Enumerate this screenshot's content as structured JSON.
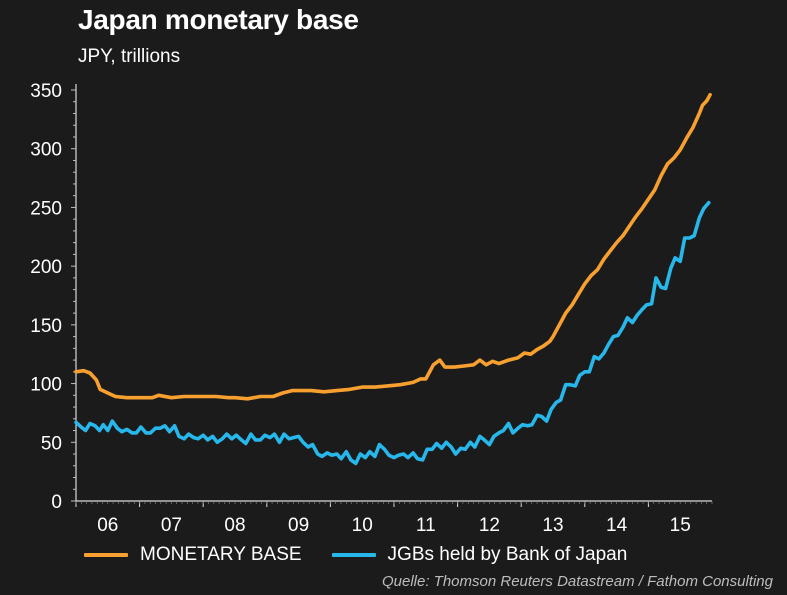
{
  "chart_data": {
    "type": "line",
    "title": "Japan monetary base",
    "subtitle": "JPY, trillions",
    "ylim": [
      0,
      350
    ],
    "yticks": [
      0,
      50,
      100,
      150,
      200,
      250,
      300,
      350
    ],
    "xlim": [
      2005.5,
      2015.5
    ],
    "xtick_labels": [
      {
        "x": 2006,
        "label": "06"
      },
      {
        "x": 2007,
        "label": "07"
      },
      {
        "x": 2008,
        "label": "08"
      },
      {
        "x": 2009,
        "label": "09"
      },
      {
        "x": 2010,
        "label": "10"
      },
      {
        "x": 2011,
        "label": "11"
      },
      {
        "x": 2012,
        "label": "12"
      },
      {
        "x": 2013,
        "label": "13"
      },
      {
        "x": 2014,
        "label": "14"
      },
      {
        "x": 2015,
        "label": "15"
      }
    ],
    "series": [
      {
        "name": "MONETARY BASE",
        "color": "#f7a030",
        "points": [
          [
            2005.5,
            110
          ],
          [
            2005.62,
            111
          ],
          [
            2005.72,
            109
          ],
          [
            2005.82,
            103
          ],
          [
            2005.88,
            95
          ],
          [
            2006.0,
            92
          ],
          [
            2006.12,
            89
          ],
          [
            2006.3,
            88
          ],
          [
            2006.5,
            88
          ],
          [
            2006.7,
            88
          ],
          [
            2006.8,
            90
          ],
          [
            2007.0,
            88
          ],
          [
            2007.2,
            89
          ],
          [
            2007.5,
            89
          ],
          [
            2007.7,
            89
          ],
          [
            2007.9,
            88
          ],
          [
            2008.0,
            88
          ],
          [
            2008.2,
            87
          ],
          [
            2008.4,
            89
          ],
          [
            2008.6,
            89
          ],
          [
            2008.75,
            92
          ],
          [
            2008.9,
            94
          ],
          [
            2009.0,
            94
          ],
          [
            2009.2,
            94
          ],
          [
            2009.4,
            93
          ],
          [
            2009.6,
            94
          ],
          [
            2009.8,
            95
          ],
          [
            2010.0,
            97
          ],
          [
            2010.2,
            97
          ],
          [
            2010.4,
            98
          ],
          [
            2010.6,
            99
          ],
          [
            2010.8,
            101
          ],
          [
            2010.92,
            104
          ],
          [
            2011.0,
            104
          ],
          [
            2011.12,
            116
          ],
          [
            2011.22,
            120
          ],
          [
            2011.3,
            114
          ],
          [
            2011.45,
            114
          ],
          [
            2011.6,
            115
          ],
          [
            2011.75,
            116
          ],
          [
            2011.85,
            120
          ],
          [
            2011.95,
            116
          ],
          [
            2012.05,
            119
          ],
          [
            2012.15,
            117
          ],
          [
            2012.3,
            120
          ],
          [
            2012.45,
            122
          ],
          [
            2012.55,
            126
          ],
          [
            2012.65,
            125
          ],
          [
            2012.75,
            129
          ],
          [
            2012.85,
            132
          ],
          [
            2012.95,
            136
          ],
          [
            2013.0,
            140
          ],
          [
            2013.1,
            150
          ],
          [
            2013.2,
            160
          ],
          [
            2013.3,
            167
          ],
          [
            2013.4,
            176
          ],
          [
            2013.5,
            185
          ],
          [
            2013.6,
            192
          ],
          [
            2013.7,
            197
          ],
          [
            2013.8,
            206
          ],
          [
            2013.9,
            213
          ],
          [
            2014.0,
            220
          ],
          [
            2014.1,
            226
          ],
          [
            2014.2,
            234
          ],
          [
            2014.3,
            242
          ],
          [
            2014.4,
            249
          ],
          [
            2014.5,
            257
          ],
          [
            2014.6,
            265
          ],
          [
            2014.7,
            277
          ],
          [
            2014.8,
            287
          ],
          [
            2014.9,
            292
          ],
          [
            2015.0,
            299
          ],
          [
            2015.1,
            309
          ],
          [
            2015.2,
            318
          ],
          [
            2015.3,
            330
          ],
          [
            2015.35,
            337
          ],
          [
            2015.42,
            341
          ],
          [
            2015.47,
            346
          ]
        ]
      },
      {
        "name": "JGBs held by Bank of Japan",
        "color": "#27b7ea",
        "points": [
          [
            2005.5,
            67
          ],
          [
            2005.58,
            63
          ],
          [
            2005.65,
            60
          ],
          [
            2005.72,
            66
          ],
          [
            2005.8,
            64
          ],
          [
            2005.87,
            60
          ],
          [
            2005.93,
            65
          ],
          [
            2006.0,
            60
          ],
          [
            2006.07,
            68
          ],
          [
            2006.15,
            62
          ],
          [
            2006.22,
            59
          ],
          [
            2006.3,
            61
          ],
          [
            2006.38,
            58
          ],
          [
            2006.45,
            58
          ],
          [
            2006.52,
            63
          ],
          [
            2006.6,
            58
          ],
          [
            2006.67,
            58
          ],
          [
            2006.75,
            62
          ],
          [
            2006.82,
            62
          ],
          [
            2006.9,
            64
          ],
          [
            2006.97,
            59
          ],
          [
            2007.05,
            64
          ],
          [
            2007.12,
            55
          ],
          [
            2007.2,
            53
          ],
          [
            2007.27,
            57
          ],
          [
            2007.35,
            54
          ],
          [
            2007.42,
            53
          ],
          [
            2007.5,
            56
          ],
          [
            2007.57,
            52
          ],
          [
            2007.65,
            55
          ],
          [
            2007.72,
            50
          ],
          [
            2007.8,
            53
          ],
          [
            2007.87,
            57
          ],
          [
            2007.95,
            53
          ],
          [
            2008.02,
            56
          ],
          [
            2008.1,
            52
          ],
          [
            2008.17,
            49
          ],
          [
            2008.25,
            57
          ],
          [
            2008.32,
            52
          ],
          [
            2008.4,
            52
          ],
          [
            2008.47,
            56
          ],
          [
            2008.55,
            54
          ],
          [
            2008.62,
            57
          ],
          [
            2008.7,
            50
          ],
          [
            2008.77,
            57
          ],
          [
            2008.85,
            53
          ],
          [
            2008.92,
            54
          ],
          [
            2009.0,
            55
          ],
          [
            2009.07,
            50
          ],
          [
            2009.15,
            46
          ],
          [
            2009.22,
            48
          ],
          [
            2009.3,
            40
          ],
          [
            2009.37,
            38
          ],
          [
            2009.45,
            41
          ],
          [
            2009.52,
            39
          ],
          [
            2009.6,
            40
          ],
          [
            2009.67,
            36
          ],
          [
            2009.75,
            42
          ],
          [
            2009.82,
            35
          ],
          [
            2009.9,
            32
          ],
          [
            2009.97,
            40
          ],
          [
            2010.05,
            37
          ],
          [
            2010.12,
            42
          ],
          [
            2010.2,
            38
          ],
          [
            2010.27,
            48
          ],
          [
            2010.35,
            44
          ],
          [
            2010.42,
            39
          ],
          [
            2010.5,
            37
          ],
          [
            2010.57,
            39
          ],
          [
            2010.65,
            40
          ],
          [
            2010.72,
            37
          ],
          [
            2010.8,
            41
          ],
          [
            2010.87,
            36
          ],
          [
            2010.95,
            35
          ],
          [
            2011.02,
            44
          ],
          [
            2011.1,
            44
          ],
          [
            2011.17,
            49
          ],
          [
            2011.25,
            45
          ],
          [
            2011.32,
            50
          ],
          [
            2011.4,
            46
          ],
          [
            2011.47,
            40
          ],
          [
            2011.55,
            45
          ],
          [
            2011.62,
            44
          ],
          [
            2011.7,
            50
          ],
          [
            2011.77,
            46
          ],
          [
            2011.85,
            55
          ],
          [
            2011.92,
            52
          ],
          [
            2012.0,
            48
          ],
          [
            2012.07,
            55
          ],
          [
            2012.15,
            58
          ],
          [
            2012.22,
            60
          ],
          [
            2012.3,
            66
          ],
          [
            2012.37,
            58
          ],
          [
            2012.45,
            62
          ],
          [
            2012.52,
            65
          ],
          [
            2012.6,
            64
          ],
          [
            2012.67,
            65
          ],
          [
            2012.75,
            73
          ],
          [
            2012.82,
            72
          ],
          [
            2012.9,
            68
          ],
          [
            2012.97,
            78
          ],
          [
            2013.05,
            84
          ],
          [
            2013.12,
            86
          ],
          [
            2013.2,
            99
          ],
          [
            2013.27,
            99
          ],
          [
            2013.35,
            98
          ],
          [
            2013.42,
            107
          ],
          [
            2013.5,
            110
          ],
          [
            2013.57,
            110
          ],
          [
            2013.65,
            123
          ],
          [
            2013.72,
            121
          ],
          [
            2013.8,
            126
          ],
          [
            2013.87,
            133
          ],
          [
            2013.95,
            140
          ],
          [
            2014.02,
            141
          ],
          [
            2014.1,
            148
          ],
          [
            2014.17,
            156
          ],
          [
            2014.25,
            152
          ],
          [
            2014.32,
            158
          ],
          [
            2014.4,
            163
          ],
          [
            2014.47,
            167
          ],
          [
            2014.55,
            168
          ],
          [
            2014.62,
            190
          ],
          [
            2014.7,
            182
          ],
          [
            2014.77,
            181
          ],
          [
            2014.85,
            198
          ],
          [
            2014.92,
            207
          ],
          [
            2015.0,
            204
          ],
          [
            2015.07,
            224
          ],
          [
            2015.15,
            224
          ],
          [
            2015.22,
            226
          ],
          [
            2015.3,
            241
          ],
          [
            2015.37,
            249
          ],
          [
            2015.45,
            254
          ]
        ]
      }
    ],
    "legend_position": "bottom",
    "source": "Quelle: Thomson Reuters Datastream / Fathom Consulting"
  }
}
